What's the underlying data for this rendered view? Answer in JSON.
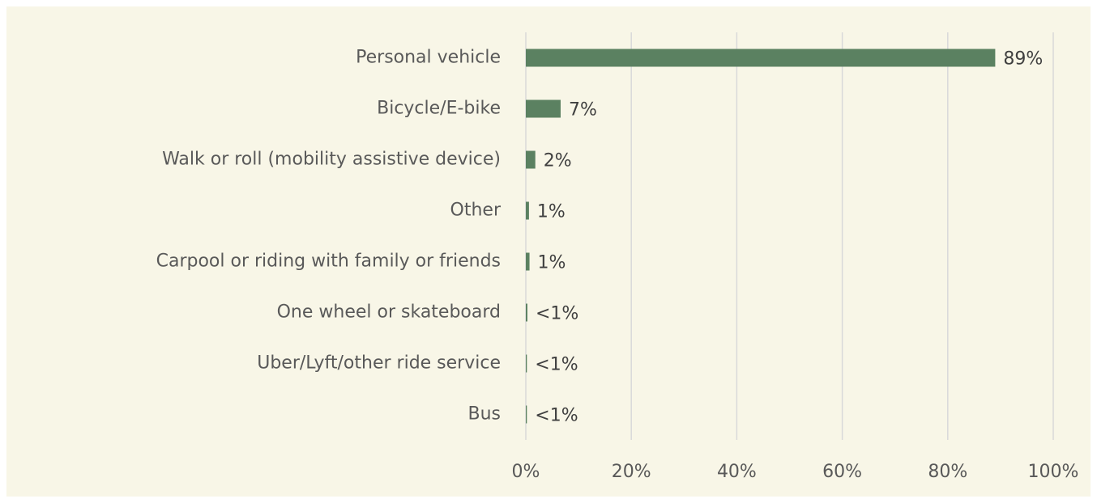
{
  "chart_data": {
    "type": "bar",
    "orientation": "horizontal",
    "categories": [
      "Personal vehicle",
      "Bicycle/E-bike",
      "Walk or roll (mobility assistive device)",
      "Other",
      "Carpool or riding with family or friends",
      "One wheel or skateboard",
      "Uber/Lyft/other ride service",
      "Bus"
    ],
    "values": [
      89,
      6.6,
      1.8,
      0.6,
      0.7,
      0.3,
      0.2,
      0.2
    ],
    "value_labels": [
      "89%",
      "7%",
      "2%",
      "1%",
      "1%",
      "<1%",
      "<1%",
      "<1%"
    ],
    "color": "#5b8161",
    "xlim": [
      0,
      100
    ],
    "xticks": [
      {
        "value": 0,
        "label": "0%"
      },
      {
        "value": 20,
        "label": "20%"
      },
      {
        "value": 40,
        "label": "40%"
      },
      {
        "value": 60,
        "label": "60%"
      },
      {
        "value": 80,
        "label": "80%"
      },
      {
        "value": 100,
        "label": "100%"
      }
    ],
    "grid": true
  }
}
